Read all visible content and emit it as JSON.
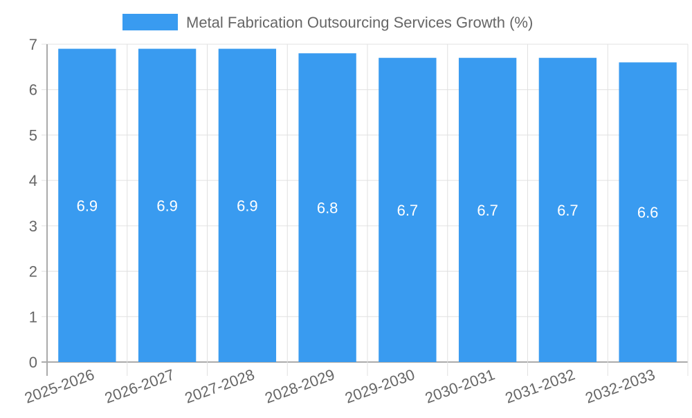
{
  "chart_data": {
    "type": "bar",
    "title": "",
    "legend": {
      "label": "Metal Fabrication Outsourcing Services Growth (%)",
      "position": "top"
    },
    "categories": [
      "2025-2026",
      "2026-2027",
      "2027-2028",
      "2028-2029",
      "2029-2030",
      "2030-2031",
      "2031-2032",
      "2032-2033"
    ],
    "values": [
      6.9,
      6.9,
      6.9,
      6.8,
      6.7,
      6.7,
      6.7,
      6.6
    ],
    "data_labels": [
      "6.9",
      "6.9",
      "6.9",
      "6.8",
      "6.7",
      "6.7",
      "6.7",
      "6.6"
    ],
    "y_ticks": [
      "0",
      "1",
      "2",
      "3",
      "4",
      "5",
      "6",
      "7"
    ],
    "ylim": [
      0,
      7
    ],
    "xlabel": "",
    "ylabel": "",
    "grid": true,
    "colors": {
      "bar": "#399bf0",
      "grid": "#e0e0e0",
      "axis": "#aaaaaa",
      "text": "#666666",
      "label": "#ffffff"
    }
  }
}
